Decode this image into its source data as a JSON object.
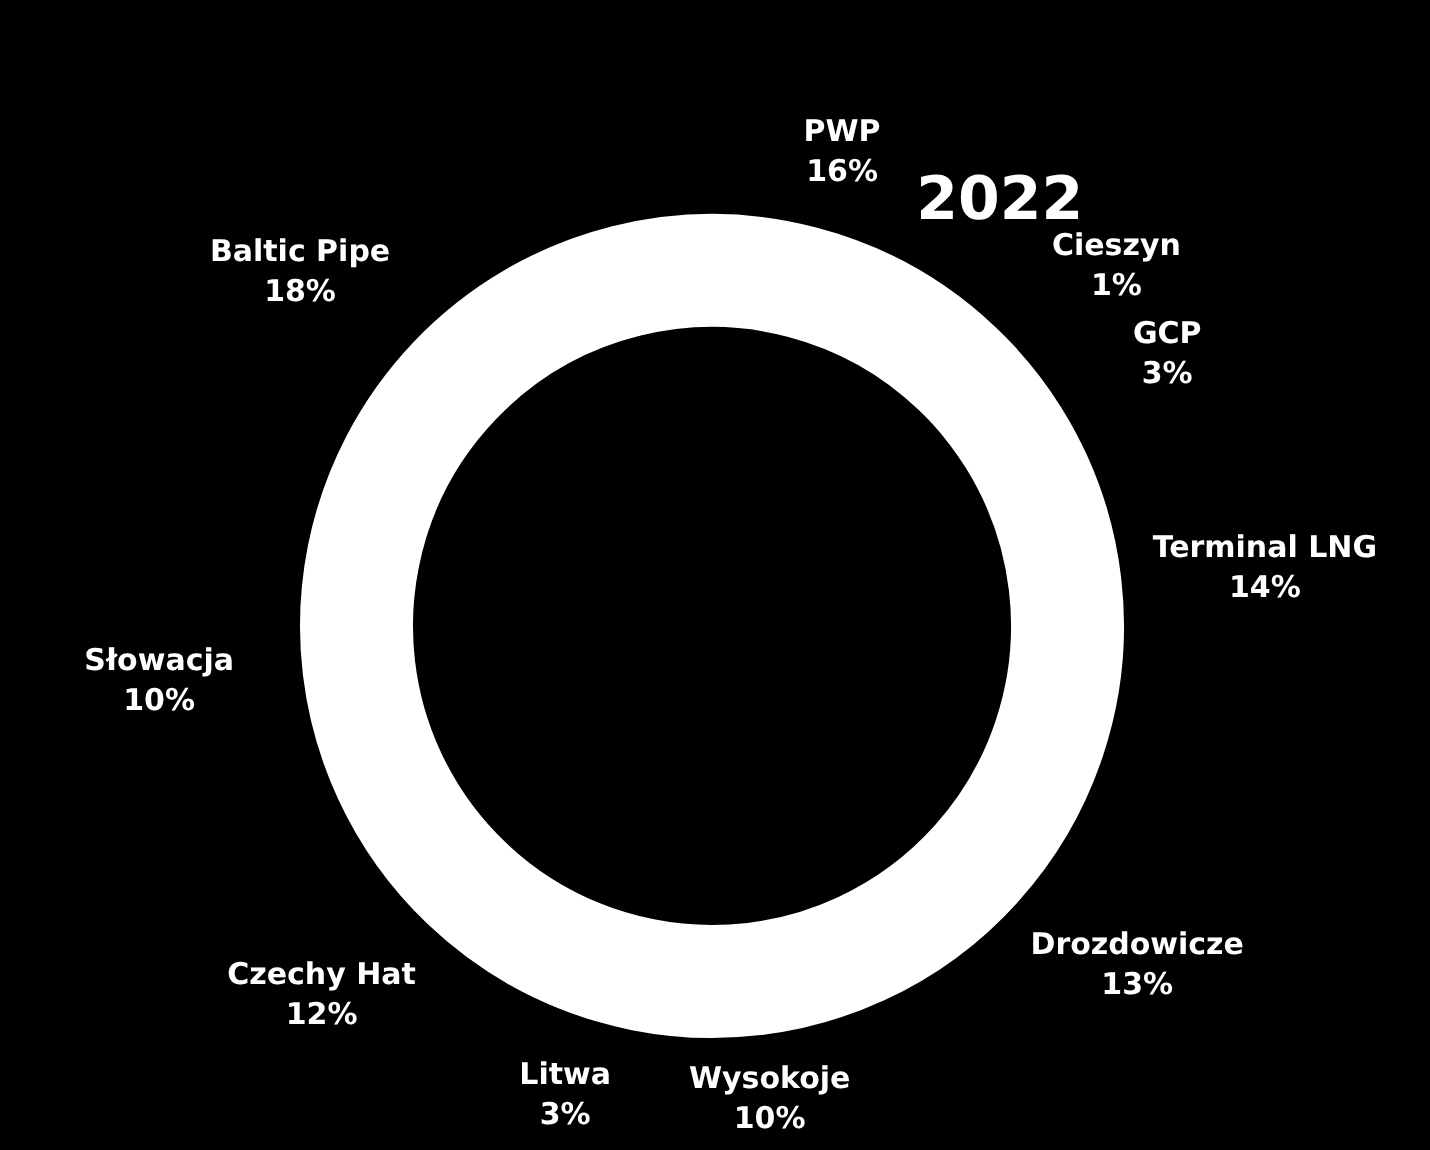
{
  "chart_data": {
    "type": "donut",
    "title": "2022",
    "categories": [
      "PWP",
      "Cieszyn",
      "GCP",
      "Terminal LNG",
      "Drozdowicze",
      "Wysokoje",
      "Litwa",
      "Czechy Hat",
      "Słowacja",
      "Baltic Pipe"
    ],
    "values": [
      16,
      1,
      3,
      14,
      13,
      10,
      3,
      12,
      10,
      18
    ],
    "colors": [
      "#ffffff",
      "#ffffff",
      "#ffffff",
      "#ffffff",
      "#ffffff",
      "#ffffff",
      "#ffffff",
      "#ffffff",
      "#ffffff",
      "#ffffff"
    ],
    "value_labels": [
      "16%",
      "1%",
      "3%",
      "14%",
      "13%",
      "10%",
      "3%",
      "12%",
      "10%",
      "18%"
    ],
    "legend": false
  }
}
